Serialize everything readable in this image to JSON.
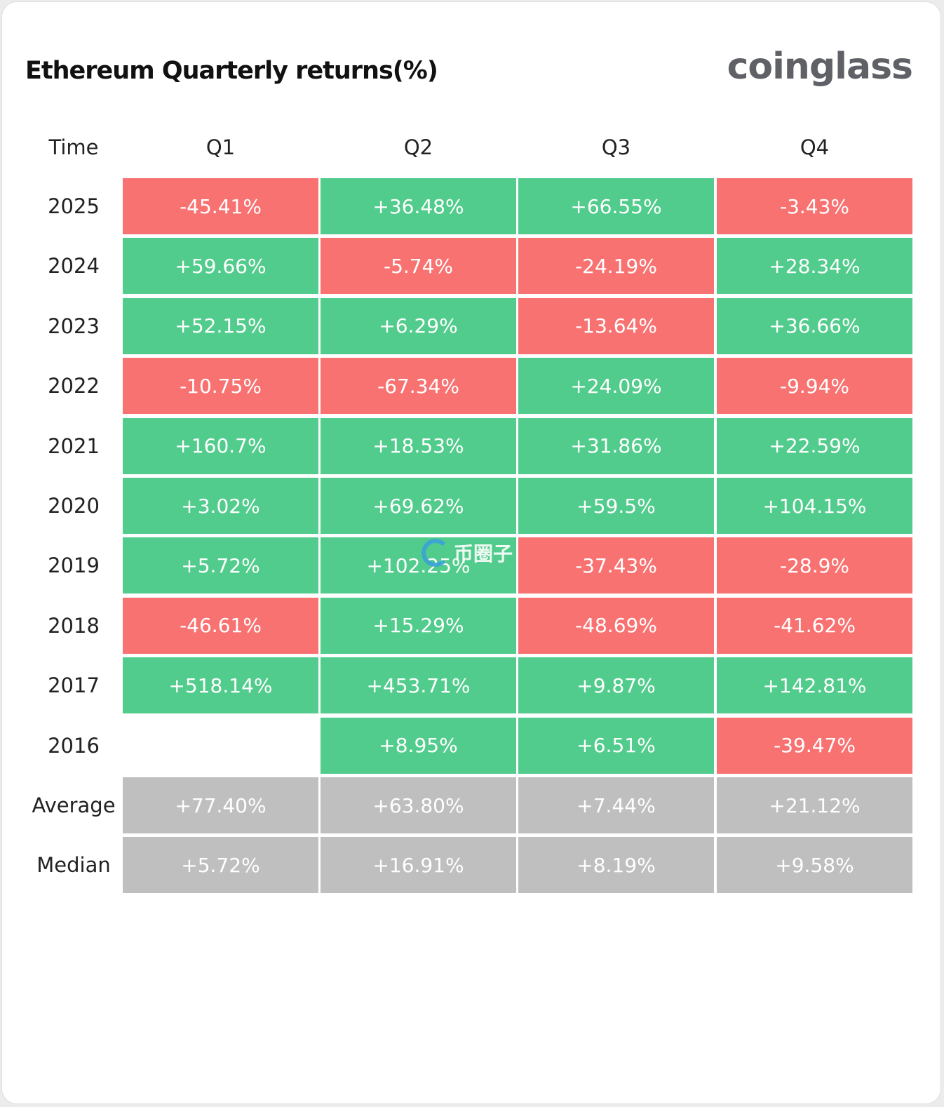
{
  "header": {
    "title": "Ethereum Quarterly returns(%)",
    "brand": "coinglass"
  },
  "table": {
    "columns": [
      "Time",
      "Q1",
      "Q2",
      "Q3",
      "Q4"
    ],
    "rows": [
      {
        "label": "2025",
        "cells": [
          "-45.41%",
          "+36.48%",
          "+66.55%",
          "-3.43%"
        ]
      },
      {
        "label": "2024",
        "cells": [
          "+59.66%",
          "-5.74%",
          "-24.19%",
          "+28.34%"
        ]
      },
      {
        "label": "2023",
        "cells": [
          "+52.15%",
          "+6.29%",
          "-13.64%",
          "+36.66%"
        ]
      },
      {
        "label": "2022",
        "cells": [
          "-10.75%",
          "-67.34%",
          "+24.09%",
          "-9.94%"
        ]
      },
      {
        "label": "2021",
        "cells": [
          "+160.7%",
          "+18.53%",
          "+31.86%",
          "+22.59%"
        ]
      },
      {
        "label": "2020",
        "cells": [
          "+3.02%",
          "+69.62%",
          "+59.5%",
          "+104.15%"
        ]
      },
      {
        "label": "2019",
        "cells": [
          "+5.72%",
          "+102.25%",
          "-37.43%",
          "-28.9%"
        ]
      },
      {
        "label": "2018",
        "cells": [
          "-46.61%",
          "+15.29%",
          "-48.69%",
          "-41.62%"
        ]
      },
      {
        "label": "2017",
        "cells": [
          "+518.14%",
          "+453.71%",
          "+9.87%",
          "+142.81%"
        ]
      },
      {
        "label": "2016",
        "cells": [
          null,
          "+8.95%",
          "+6.51%",
          "-39.47%"
        ]
      }
    ],
    "summary_rows": [
      {
        "label": "Average",
        "cells": [
          "+77.40%",
          "+63.80%",
          "+7.44%",
          "+21.12%"
        ]
      },
      {
        "label": "Median",
        "cells": [
          "+5.72%",
          "+16.91%",
          "+8.19%",
          "+9.58%"
        ]
      }
    ]
  },
  "watermark": "币圈子",
  "colors": {
    "positive": "#52cc8c",
    "negative": "#f87272",
    "summary": "#bfbfbf"
  }
}
